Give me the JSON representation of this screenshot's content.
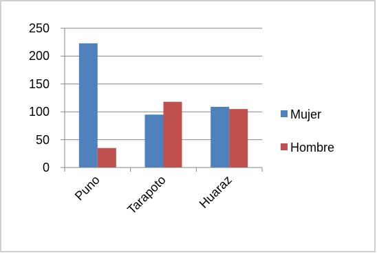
{
  "chart_data": {
    "type": "bar",
    "title": "",
    "xlabel": "",
    "ylabel": "",
    "categories": [
      "Puno",
      "Tarapoto",
      "Huaraz"
    ],
    "series": [
      {
        "name": "Mujer",
        "values": [
          223,
          95,
          109
        ],
        "color": "#4F81BD"
      },
      {
        "name": "Hombre",
        "values": [
          35,
          118,
          105
        ],
        "color": "#C0504D"
      }
    ],
    "ylim": [
      0,
      250
    ],
    "yticks": [
      "0",
      "50",
      "100",
      "150",
      "200",
      "250"
    ],
    "grid": true,
    "legend": "right"
  }
}
